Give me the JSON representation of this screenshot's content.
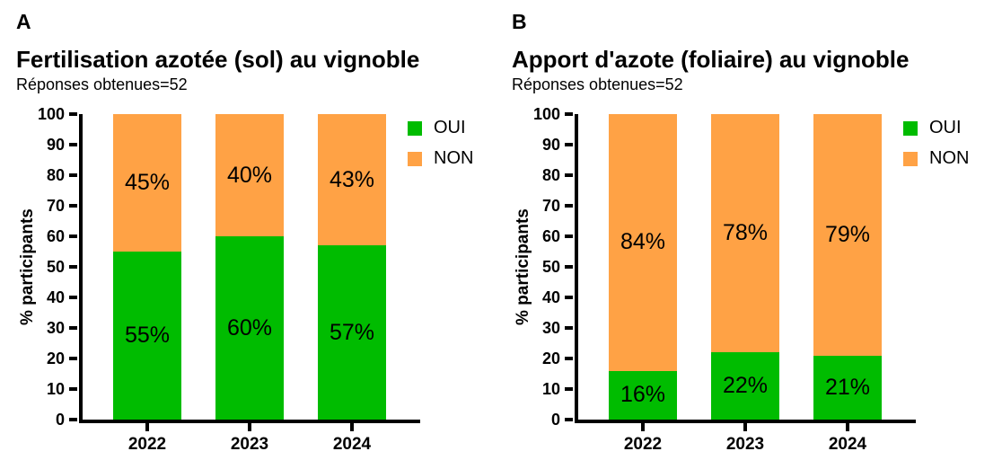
{
  "figure": {
    "background": "#ffffff",
    "axis_color": "#000000",
    "text_color": "#000000"
  },
  "chart_data": [
    {
      "type": "bar",
      "stacked": true,
      "panel_letter": "A",
      "title": "Fertilisation azotée (sol) au vignoble",
      "subtitle": "Réponses obtenues=52",
      "xlabel": "",
      "ylabel": "% participants",
      "ylim": [
        0,
        100
      ],
      "yticks": [
        0,
        10,
        20,
        30,
        40,
        50,
        60,
        70,
        80,
        90,
        100
      ],
      "grid": false,
      "legend_position": "right-top",
      "categories": [
        "2022",
        "2023",
        "2024"
      ],
      "series": [
        {
          "name": "OUI",
          "color": "#00BC00",
          "values": [
            55,
            60,
            57
          ],
          "labels": [
            "55%",
            "60%",
            "57%"
          ]
        },
        {
          "name": "NON",
          "color": "#FFA245",
          "values": [
            45,
            40,
            43
          ],
          "labels": [
            "45%",
            "40%",
            "43%"
          ]
        }
      ],
      "legend": [
        {
          "label": "OUI",
          "color": "#00BC00"
        },
        {
          "label": "NON",
          "color": "#FFA245"
        }
      ]
    },
    {
      "type": "bar",
      "stacked": true,
      "panel_letter": "B",
      "title": "Apport d'azote (foliaire) au vignoble",
      "subtitle": "Réponses obtenues=52",
      "xlabel": "",
      "ylabel": "% participants",
      "ylim": [
        0,
        100
      ],
      "yticks": [
        0,
        10,
        20,
        30,
        40,
        50,
        60,
        70,
        80,
        90,
        100
      ],
      "grid": false,
      "legend_position": "right-top",
      "categories": [
        "2022",
        "2023",
        "2024"
      ],
      "series": [
        {
          "name": "OUI",
          "color": "#00BC00",
          "values": [
            16,
            22,
            21
          ],
          "labels": [
            "16%",
            "22%",
            "21%"
          ]
        },
        {
          "name": "NON",
          "color": "#FFA245",
          "values": [
            84,
            78,
            79
          ],
          "labels": [
            "84%",
            "78%",
            "79%"
          ]
        }
      ],
      "legend": [
        {
          "label": "OUI",
          "color": "#00BC00"
        },
        {
          "label": "NON",
          "color": "#FFA245"
        }
      ]
    }
  ]
}
